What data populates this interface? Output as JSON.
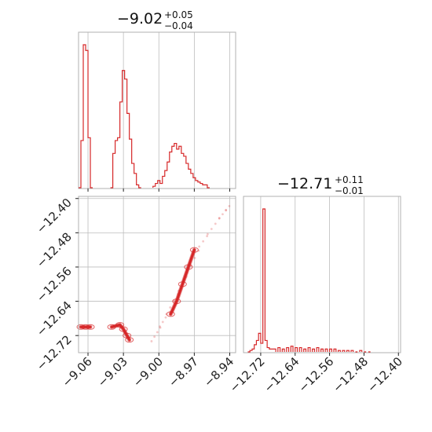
{
  "chart_data": {
    "type": "corner",
    "color": "#d62728",
    "param1": {
      "title": {
        "value": "−9.02",
        "plus": "+0.05",
        "minus": "−0.04"
      },
      "range": [
        -9.068,
        -8.935
      ],
      "ticks": [
        -9.06,
        -9.03,
        -9.0,
        -8.97,
        -8.94
      ],
      "tick_labels": [
        "−9.06",
        "−9.03",
        "−9.00",
        "−8.97",
        "−8.94"
      ],
      "hist": [
        [
          -9.068,
          0.0
        ],
        [
          -9.066,
          0.33
        ],
        [
          -9.064,
          1.0
        ],
        [
          -9.062,
          0.96
        ],
        [
          -9.06,
          0.35
        ],
        [
          -9.058,
          0.0
        ],
        [
          -9.041,
          0.0
        ],
        [
          -9.039,
          0.24
        ],
        [
          -9.037,
          0.33
        ],
        [
          -9.035,
          0.35
        ],
        [
          -9.033,
          0.6
        ],
        [
          -9.031,
          0.82
        ],
        [
          -9.029,
          0.76
        ],
        [
          -9.027,
          0.52
        ],
        [
          -9.025,
          0.34
        ],
        [
          -9.023,
          0.17
        ],
        [
          -9.021,
          0.1
        ],
        [
          -9.019,
          0.02
        ],
        [
          -9.017,
          0.0
        ],
        [
          -9.005,
          0.01
        ],
        [
          -9.003,
          0.03
        ],
        [
          -9.001,
          0.05
        ],
        [
          -8.999,
          0.03
        ],
        [
          -8.997,
          0.08
        ],
        [
          -8.995,
          0.12
        ],
        [
          -8.993,
          0.18
        ],
        [
          -8.991,
          0.25
        ],
        [
          -8.989,
          0.29
        ],
        [
          -8.987,
          0.31
        ],
        [
          -8.985,
          0.27
        ],
        [
          -8.983,
          0.29
        ],
        [
          -8.981,
          0.24
        ],
        [
          -8.979,
          0.22
        ],
        [
          -8.977,
          0.17
        ],
        [
          -8.975,
          0.13
        ],
        [
          -8.973,
          0.1
        ],
        [
          -8.971,
          0.07
        ],
        [
          -8.969,
          0.05
        ],
        [
          -8.967,
          0.04
        ],
        [
          -8.965,
          0.03
        ],
        [
          -8.963,
          0.02
        ],
        [
          -8.961,
          0.02
        ],
        [
          -8.959,
          0.0
        ]
      ]
    },
    "param2": {
      "title": {
        "value": "−12.71",
        "plus": "+0.11",
        "minus": "−0.01"
      },
      "range": [
        -12.76,
        -12.395
      ],
      "ticks": [
        -12.72,
        -12.64,
        -12.56,
        -12.48,
        -12.4
      ],
      "tick_labels": [
        "−12.72",
        "−12.64",
        "−12.56",
        "−12.48",
        "−12.40"
      ],
      "hist": [
        [
          -12.75,
          0.0
        ],
        [
          -12.745,
          0.01
        ],
        [
          -12.74,
          0.02
        ],
        [
          -12.735,
          0.05
        ],
        [
          -12.73,
          0.08
        ],
        [
          -12.725,
          0.13
        ],
        [
          -12.72,
          0.06
        ],
        [
          -12.715,
          1.0
        ],
        [
          -12.71,
          0.08
        ],
        [
          -12.705,
          0.03
        ],
        [
          -12.7,
          0.02
        ],
        [
          -12.695,
          0.02
        ],
        [
          -12.69,
          0.02
        ],
        [
          -12.68,
          0.03
        ],
        [
          -12.67,
          0.02
        ],
        [
          -12.66,
          0.03
        ],
        [
          -12.65,
          0.04
        ],
        [
          -12.64,
          0.03
        ],
        [
          -12.63,
          0.03
        ],
        [
          -12.62,
          0.02
        ],
        [
          -12.61,
          0.03
        ],
        [
          -12.6,
          0.02
        ],
        [
          -12.59,
          0.03
        ],
        [
          -12.58,
          0.02
        ],
        [
          -12.57,
          0.02
        ],
        [
          -12.56,
          0.02
        ],
        [
          -12.55,
          0.02
        ],
        [
          -12.54,
          0.01
        ],
        [
          -12.53,
          0.01
        ],
        [
          -12.52,
          0.01
        ],
        [
          -12.51,
          0.01
        ],
        [
          -12.5,
          0.0
        ],
        [
          -12.49,
          0.01
        ],
        [
          -12.48,
          0.0
        ],
        [
          -12.47,
          0.0
        ]
      ]
    },
    "joint": {
      "clusters": [
        {
          "points": [
            [
              -9.066,
              -12.7
            ],
            [
              -9.062,
              -12.7
            ],
            [
              -9.058,
              -12.7
            ]
          ]
        },
        {
          "points": [
            [
              -9.04,
              -12.7
            ],
            [
              -9.033,
              -12.695
            ],
            [
              -9.03,
              -12.705
            ],
            [
              -9.027,
              -12.72
            ],
            [
              -9.025,
              -12.73
            ]
          ]
        },
        {
          "points": [
            [
              -8.99,
              -12.67
            ],
            [
              -8.985,
              -12.64
            ],
            [
              -8.98,
              -12.6
            ],
            [
              -8.975,
              -12.56
            ],
            [
              -8.97,
              -12.52
            ]
          ]
        }
      ],
      "scatter_trend": [
        [
          -9.005,
          -12.73
        ],
        [
          -8.995,
          -12.68
        ],
        [
          -8.98,
          -12.6
        ],
        [
          -8.965,
          -12.51
        ],
        [
          -8.95,
          -12.45
        ],
        [
          -8.938,
          -12.41
        ]
      ]
    }
  }
}
